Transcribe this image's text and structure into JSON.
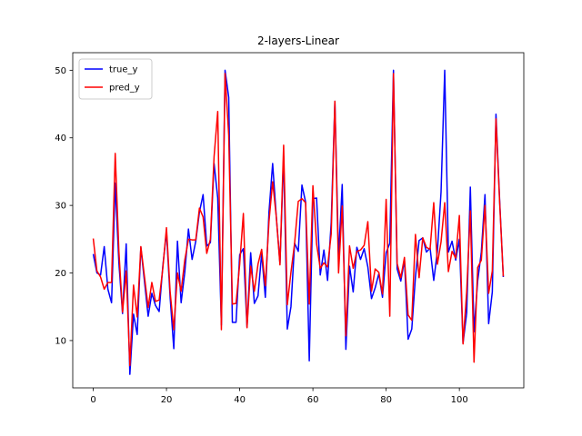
{
  "chart_data": {
    "type": "line",
    "title": "2-layers-Linear",
    "xlabel": "",
    "ylabel": "",
    "xlim": [
      -5.6,
      117.6
    ],
    "ylim": [
      3.0,
      52.6
    ],
    "xticks": [
      0,
      20,
      40,
      60,
      80,
      100
    ],
    "yticks": [
      10,
      20,
      30,
      40,
      50
    ],
    "grid": false,
    "legend_position": "top-left",
    "series": [
      {
        "name": "true_y",
        "color": "#0000ff",
        "x_start": 0,
        "values": [
          22.8,
          20.0,
          19.7,
          23.9,
          17.6,
          15.6,
          33.3,
          21.5,
          14.0,
          24.3,
          5.0,
          13.9,
          10.9,
          23.8,
          18.7,
          13.6,
          17.0,
          15.2,
          14.3,
          21.0,
          26.1,
          16.4,
          8.8,
          24.7,
          15.6,
          20.1,
          26.5,
          22.0,
          24.7,
          29.0,
          31.6,
          24.0,
          24.5,
          36.2,
          31.1,
          12.3,
          50.0,
          46.0,
          12.7,
          12.7,
          22.7,
          23.6,
          12.0,
          23.0,
          15.5,
          16.6,
          22.9,
          16.4,
          29.0,
          36.2,
          28.3,
          21.4,
          37.3,
          11.7,
          15.0,
          24.4,
          23.2,
          33.0,
          30.5,
          7.0,
          31.0,
          31.1,
          19.7,
          23.4,
          18.9,
          27.5,
          45.4,
          22.3,
          33.1,
          8.7,
          21.0,
          17.2,
          23.8,
          22.0,
          23.6,
          20.9,
          16.2,
          17.8,
          19.9,
          16.4,
          23.0,
          24.4,
          50.0,
          20.6,
          18.8,
          21.9,
          10.2,
          11.7,
          19.4,
          24.8,
          25.2,
          23.1,
          23.7,
          18.9,
          23.2,
          32.0,
          50.0,
          23.1,
          24.7,
          21.9,
          25.0,
          9.6,
          14.1,
          32.7,
          11.3,
          18.8,
          23.1,
          31.6,
          12.5,
          17.2,
          43.5,
          30.8,
          19.4
        ]
      },
      {
        "name": "pred_y",
        "color": "#ff0000",
        "x_start": 0,
        "values": [
          25.1,
          20.3,
          19.4,
          17.6,
          18.6,
          18.6,
          37.7,
          23.2,
          14.2,
          20.3,
          6.3,
          18.2,
          13.5,
          23.9,
          19.4,
          14.9,
          18.6,
          15.8,
          16.0,
          20.7,
          26.7,
          17.2,
          11.6,
          20.0,
          17.3,
          21.9,
          25.0,
          24.9,
          24.9,
          29.6,
          28.3,
          22.9,
          25.0,
          37.2,
          43.9,
          11.6,
          49.5,
          40.4,
          15.4,
          15.5,
          21.3,
          28.8,
          11.9,
          21.0,
          17.3,
          21.3,
          23.5,
          18.1,
          27.6,
          33.5,
          28.3,
          21.2,
          38.9,
          15.3,
          20.1,
          24.4,
          30.6,
          31.0,
          30.4,
          15.4,
          32.9,
          24.3,
          20.7,
          21.5,
          20.9,
          25.8,
          45.4,
          20.0,
          29.9,
          10.7,
          24.0,
          20.7,
          23.2,
          23.4,
          24.1,
          27.6,
          17.3,
          20.6,
          20.1,
          16.9,
          30.9,
          13.6,
          49.5,
          21.4,
          19.3,
          22.3,
          13.8,
          13.0,
          25.7,
          19.3,
          25.2,
          23.8,
          23.5,
          30.4,
          21.3,
          24.6,
          30.4,
          20.2,
          23.2,
          22.2,
          28.5,
          9.5,
          17.2,
          29.2,
          6.8,
          20.8,
          21.9,
          30.0,
          17.0,
          20.3,
          42.8,
          30.5,
          19.5
        ]
      }
    ]
  }
}
